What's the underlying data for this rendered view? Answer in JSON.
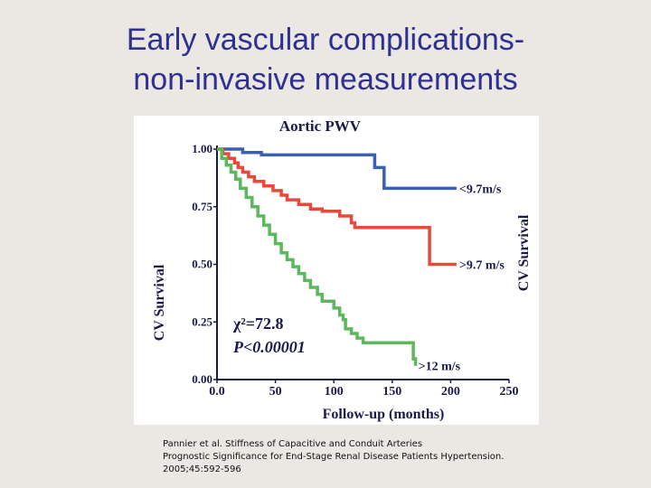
{
  "slide": {
    "title_line1": "Early vascular complications-",
    "title_line2": "non-invasive measurements"
  },
  "citation": {
    "line1": "Pannier et al. Stiffness of Capacitive and Conduit Arteries",
    "line2": "Prognostic Significance for End-Stage Renal Disease Patients Hypertension.",
    "line3": "2005;45:592-596"
  },
  "chart_data": {
    "type": "line",
    "title": "Aortic PWV",
    "xlabel": "Follow-up (months)",
    "ylabel": "CV Survival",
    "ylabel_right": "CV Survival",
    "xlim": [
      0,
      250
    ],
    "ylim": [
      0,
      1
    ],
    "x_ticks": [
      "0.0",
      "50",
      "100",
      "150",
      "200",
      "250"
    ],
    "y_ticks": [
      "0.00",
      "0.25",
      "0.50",
      "0.75",
      "1.00"
    ],
    "annotations": {
      "chi_label": "χ²=72.8",
      "p_label": "P<0.00001"
    },
    "series": [
      {
        "name": "<9.7m/s",
        "color": "#3a5fb4",
        "points": [
          [
            0,
            1.0
          ],
          [
            20,
            1.0
          ],
          [
            22,
            0.985
          ],
          [
            35,
            0.985
          ],
          [
            38,
            0.975
          ],
          [
            130,
            0.975
          ],
          [
            135,
            0.92
          ],
          [
            140,
            0.92
          ],
          [
            143,
            0.83
          ],
          [
            205,
            0.83
          ]
        ]
      },
      {
        "name": ">9.7 m/s",
        "color": "#e8493a",
        "points": [
          [
            0,
            1.0
          ],
          [
            5,
            0.98
          ],
          [
            10,
            0.96
          ],
          [
            15,
            0.94
          ],
          [
            18,
            0.92
          ],
          [
            22,
            0.9
          ],
          [
            27,
            0.88
          ],
          [
            32,
            0.86
          ],
          [
            40,
            0.84
          ],
          [
            48,
            0.82
          ],
          [
            55,
            0.8
          ],
          [
            60,
            0.78
          ],
          [
            70,
            0.76
          ],
          [
            80,
            0.74
          ],
          [
            90,
            0.73
          ],
          [
            105,
            0.71
          ],
          [
            115,
            0.68
          ],
          [
            118,
            0.66
          ],
          [
            180,
            0.66
          ],
          [
            182,
            0.5
          ],
          [
            205,
            0.5
          ]
        ]
      },
      {
        "name": ">12 m/s",
        "color": "#5cb85c",
        "points": [
          [
            0,
            1.0
          ],
          [
            4,
            0.96
          ],
          [
            8,
            0.93
          ],
          [
            12,
            0.9
          ],
          [
            16,
            0.87
          ],
          [
            20,
            0.83
          ],
          [
            25,
            0.79
          ],
          [
            30,
            0.75
          ],
          [
            35,
            0.71
          ],
          [
            40,
            0.67
          ],
          [
            45,
            0.63
          ],
          [
            50,
            0.59
          ],
          [
            55,
            0.55
          ],
          [
            60,
            0.52
          ],
          [
            65,
            0.49
          ],
          [
            70,
            0.46
          ],
          [
            75,
            0.43
          ],
          [
            80,
            0.4
          ],
          [
            86,
            0.37
          ],
          [
            90,
            0.34
          ],
          [
            100,
            0.31
          ],
          [
            105,
            0.28
          ],
          [
            108,
            0.26
          ],
          [
            110,
            0.22
          ],
          [
            115,
            0.2
          ],
          [
            120,
            0.18
          ],
          [
            125,
            0.16
          ],
          [
            165,
            0.16
          ],
          [
            168,
            0.09
          ],
          [
            170,
            0.06
          ]
        ]
      }
    ]
  }
}
